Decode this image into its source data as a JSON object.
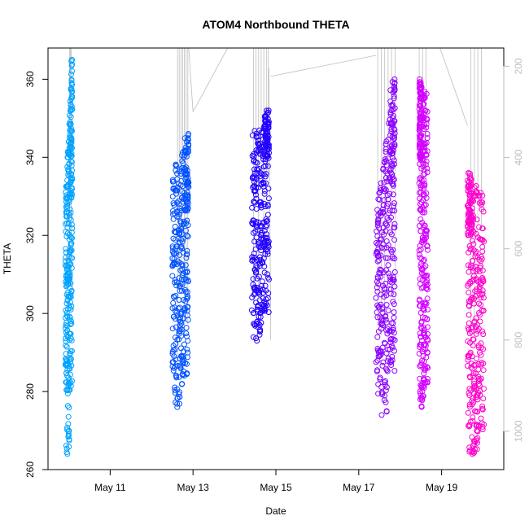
{
  "chart_data": {
    "type": "scatter",
    "title": "ATOM4 Northbound THETA",
    "xlabel": "Date",
    "ylabel": "THETA",
    "xlim": [
      "2012-05-09 12:00",
      "2012-05-20 12:00"
    ],
    "ylim": [
      260,
      368
    ],
    "y2lim": [
      1084,
      160
    ],
    "y2_reversed": true,
    "x_ticks": [
      {
        "label": "May 11",
        "x": "2012-05-11"
      },
      {
        "label": "May 13",
        "x": "2012-05-13"
      },
      {
        "label": "May 15",
        "x": "2012-05-15"
      },
      {
        "label": "May 17",
        "x": "2012-05-17"
      },
      {
        "label": "May 19",
        "x": "2012-05-19"
      }
    ],
    "y_ticks": [
      260,
      280,
      300,
      320,
      340,
      360
    ],
    "y2_ticks": [
      200,
      400,
      600,
      800,
      1000
    ],
    "grid": false,
    "marker": "open-circle",
    "colors": {
      "series_1": "#00a3ff",
      "series_2": "#0051ff",
      "series_3": "#2200ff",
      "series_4": "#8a00ff",
      "series_5": "#d300ff",
      "series_6": "#ff00cc",
      "pressure_lines": "#bebebe"
    },
    "series": [
      {
        "x_start": "2012-05-09 22:00",
        "x_end": "2012-05-10 02:00",
        "y_min": 264,
        "y_max": 365,
        "y_main": [
          280,
          330
        ],
        "y_top": [
          330,
          365
        ],
        "sparse": [
          [
            264,
            280
          ]
        ],
        "top_edge": "right"
      },
      {
        "x_start": "2012-05-12 12:00",
        "x_end": "2012-05-12 21:30",
        "y_min": 276,
        "y_max": 346,
        "y_main": [
          284,
          338
        ],
        "y_top": [
          326,
          346
        ],
        "sparse": [
          [
            276,
            284
          ]
        ],
        "top_edge": "right"
      },
      {
        "x_start": "2012-05-14 10:00",
        "x_end": "2012-05-14 20:00",
        "y_min": 293,
        "y_max": 352,
        "y_main": [
          300,
          346
        ],
        "y_top": [
          340,
          352
        ],
        "sparse": [
          [
            293,
            300
          ]
        ],
        "top_edge": "right"
      },
      {
        "x_start": "2012-05-17 10:00",
        "x_end": "2012-05-17 21:00",
        "y_min": 274,
        "y_max": 360,
        "y_main": [
          285,
          326
        ],
        "y_top": [
          330,
          360
        ],
        "sparse": [
          [
            274,
            285
          ]
        ],
        "top_edge": "right"
      },
      {
        "x_start": "2012-05-18 11:00",
        "x_end": "2012-05-18 16:00",
        "y_min": 276,
        "y_max": 360,
        "y_main": [
          282,
          356
        ],
        "y_top": [
          340,
          360
        ],
        "sparse": [
          [
            276,
            282
          ]
        ],
        "top_edge": "left"
      },
      {
        "x_start": "2012-05-19 15:00",
        "x_end": "2012-05-20 00:30",
        "y_min": 264,
        "y_max": 336,
        "y_main": [
          268,
          330
        ],
        "y_top": [
          320,
          336
        ],
        "sparse": [
          [
            264,
            268
          ]
        ],
        "top_edge": "left"
      }
    ],
    "pressure_lines_x": [
      "2012-05-10 00:30",
      "2012-05-10 01:00",
      "2012-05-10 01:30",
      "2012-05-12 15:00",
      "2012-05-12 16:00",
      "2012-05-12 17:00",
      "2012-05-12 18:00",
      "2012-05-12 19:00",
      "2012-05-12 20:00",
      "2012-05-12 21:00",
      "2012-05-14 11:00",
      "2012-05-14 12:30",
      "2012-05-14 14:00",
      "2012-05-14 15:30",
      "2012-05-14 17:00",
      "2012-05-14 18:30",
      "2012-05-14 19:30",
      "2012-05-17 11:00",
      "2012-05-17 13:00",
      "2012-05-17 15:00",
      "2012-05-17 17:00",
      "2012-05-17 19:00",
      "2012-05-17 21:00",
      "2012-05-18 11:00",
      "2012-05-18 13:00",
      "2012-05-18 15:00",
      "2012-05-19 17:00",
      "2012-05-19 19:00",
      "2012-05-19 21:00",
      "2012-05-19 23:00"
    ],
    "pressure_connectors": [
      [
        [
          "2012-05-12 21:30",
          150
        ],
        [
          "2012-05-13 00:00",
          300
        ]
      ],
      [
        [
          "2012-05-13 00:00",
          300
        ],
        [
          "2012-05-13 20:00",
          135
        ]
      ],
      [
        [
          "2012-05-14 20:00",
          205
        ],
        [
          "2012-05-14 21:00",
          800
        ]
      ],
      [
        [
          "2012-05-14 21:00",
          222
        ],
        [
          "2012-05-17 10:00",
          176
        ]
      ],
      [
        [
          "2012-05-18 16:00",
          140
        ],
        [
          "2012-05-18 23:00",
          140
        ]
      ],
      [
        [
          "2012-05-18 23:00",
          140
        ],
        [
          "2012-05-19 15:00",
          330
        ]
      ]
    ]
  }
}
